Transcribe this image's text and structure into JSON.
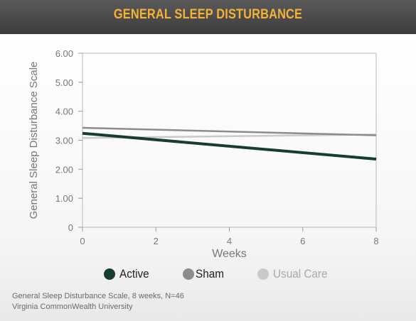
{
  "header": {
    "title": "GENERAL SLEEP DISTURBANCE"
  },
  "chart_data": {
    "type": "line",
    "title": "GENERAL SLEEP DISTURBANCE",
    "xlabel": "Weeks",
    "ylabel": "General Sleep Disturbance Scale",
    "x": [
      0,
      8
    ],
    "xticks": [
      "0",
      "2",
      "4",
      "6",
      "8"
    ],
    "yticks": [
      "0",
      "1.00",
      "2.00",
      "3.00",
      "4.00",
      "5.00",
      "6.00"
    ],
    "ylim": [
      0,
      6
    ],
    "xlim": [
      0,
      8
    ],
    "grid": false,
    "legend_position": "bottom",
    "series": [
      {
        "name": "Usual Care",
        "color": "#c9c9c9",
        "values": [
          3.08,
          3.2
        ]
      },
      {
        "name": "Sham",
        "color": "#8c8c8c",
        "values": [
          3.43,
          3.17
        ]
      },
      {
        "name": "Active",
        "color": "#163d30",
        "values": [
          3.24,
          2.35
        ]
      }
    ]
  },
  "legend": {
    "items": [
      {
        "label": "Active",
        "color": "#163d30"
      },
      {
        "label": "Sham",
        "color": "#8c8c8c"
      },
      {
        "label": "Usual Care",
        "color": "#c9c9c9"
      }
    ]
  },
  "footer": {
    "line1": "General Sleep Disturbance Scale, 8 weeks, N=46",
    "line2": "Virginia CommonWealth University"
  }
}
